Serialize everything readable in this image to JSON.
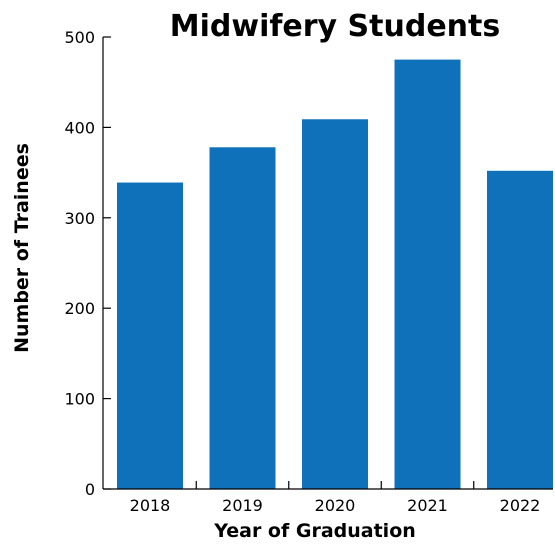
{
  "chart_data": {
    "type": "bar",
    "title": "Midwifery Students",
    "xlabel": "Year of Graduation",
    "ylabel": "Number of Trainees",
    "categories": [
      "2018",
      "2019",
      "2020",
      "2021",
      "2022"
    ],
    "values": [
      339,
      378,
      409,
      475,
      352
    ],
    "ylim": [
      0,
      500
    ],
    "yticks": [
      0,
      100,
      200,
      300,
      400,
      500
    ],
    "grid": false,
    "legend": "none",
    "bar_color": "#0f71b9"
  }
}
